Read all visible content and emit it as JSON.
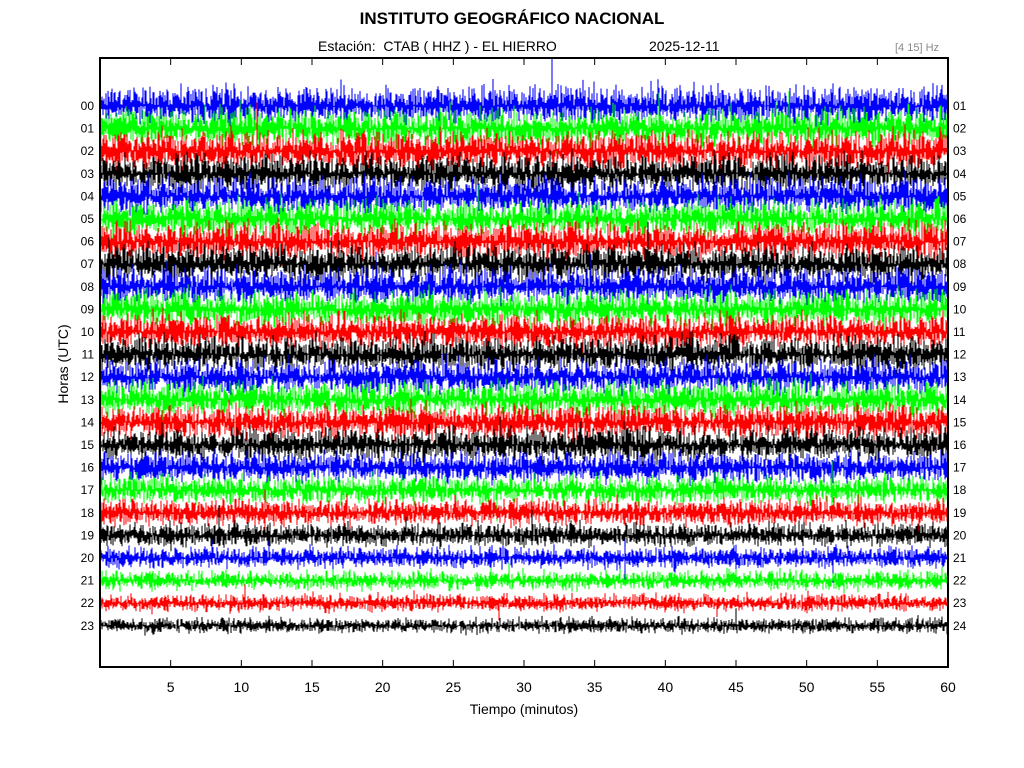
{
  "header": {
    "title": "INSTITUTO GEOGRÁFICO NACIONAL",
    "station": "Estación:  CTAB ( HHZ ) - EL HIERRO",
    "date": "2025-12-11",
    "filter": "[4 15] Hz"
  },
  "chart_data": {
    "type": "line",
    "title": "INSTITUTO GEOGRÁFICO NACIONAL",
    "xlabel": "Tiempo (minutos)",
    "ylabel": "Horas (UTC)",
    "xlim": [
      0,
      60
    ],
    "x_ticks": [
      5,
      10,
      15,
      20,
      25,
      30,
      35,
      40,
      45,
      50,
      55,
      60
    ],
    "left_hour_labels": [
      "00",
      "01",
      "02",
      "03",
      "04",
      "05",
      "06",
      "07",
      "08",
      "09",
      "10",
      "11",
      "12",
      "13",
      "14",
      "15",
      "16",
      "17",
      "18",
      "19",
      "20",
      "21",
      "22",
      "23"
    ],
    "right_hour_labels": [
      "01",
      "02",
      "03",
      "04",
      "05",
      "06",
      "07",
      "08",
      "09",
      "10",
      "11",
      "12",
      "13",
      "14",
      "15",
      "16",
      "17",
      "18",
      "19",
      "20",
      "21",
      "22",
      "23",
      "24"
    ],
    "trace_colors": [
      "#0000ff",
      "#00ff00",
      "#ff0000",
      "#000000"
    ],
    "trace_color_cycle_note": "trace color repeats blue, green, red, black by hour",
    "amplitude_relative": [
      1.0,
      1.0,
      1.0,
      0.95,
      0.95,
      0.95,
      0.95,
      0.95,
      0.95,
      0.95,
      0.9,
      0.9,
      0.9,
      0.9,
      0.9,
      0.85,
      0.8,
      0.75,
      0.7,
      0.6,
      0.55,
      0.5,
      0.45,
      0.4
    ],
    "grid": false
  }
}
